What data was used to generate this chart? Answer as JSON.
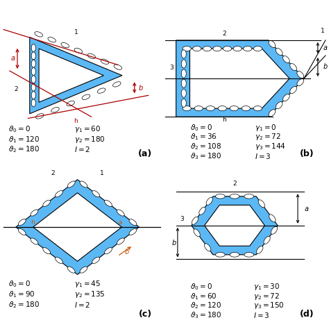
{
  "bg_color": "#ffffff",
  "blue_color": "#5bb8f5",
  "red_color": "#aa0000",
  "dark_red": "#8b0000",
  "orange_color": "#cc5500",
  "panel_a": {
    "label": "(a)",
    "equations": [
      [
        "\\vartheta_0 = 0",
        "\\gamma_1 = 60"
      ],
      [
        "\\vartheta_1 = 120",
        "\\gamma_2 = 180"
      ],
      [
        "\\vartheta_2 = 180",
        "I = 2"
      ]
    ]
  },
  "panel_b": {
    "label": "(b)",
    "equations": [
      [
        "\\vartheta_0 = 0",
        "\\gamma_1 = 0"
      ],
      [
        "\\vartheta_1 = 36",
        "\\gamma_2 = 72"
      ],
      [
        "\\vartheta_2 = 108",
        "\\gamma_3 = 144"
      ],
      [
        "\\vartheta_3 = 180",
        "I = 3"
      ]
    ]
  },
  "panel_c": {
    "label": "(c)",
    "equations": [
      [
        "\\vartheta_0 = 0",
        "\\gamma_1 = 45"
      ],
      [
        "\\vartheta_1 = 90",
        "\\gamma_2 = 135"
      ],
      [
        "\\vartheta_2 = 180",
        "I = 2"
      ]
    ]
  },
  "panel_d": {
    "label": "(d)",
    "equations": [
      [
        "\\vartheta_0 = 0",
        "\\gamma_1 = 30"
      ],
      [
        "\\vartheta_1 = 60",
        "\\gamma_2 = 72"
      ],
      [
        "\\vartheta_2 = 120",
        "\\gamma_3 = 150"
      ],
      [
        "\\vartheta_3 = 180",
        "I = 3"
      ]
    ]
  }
}
